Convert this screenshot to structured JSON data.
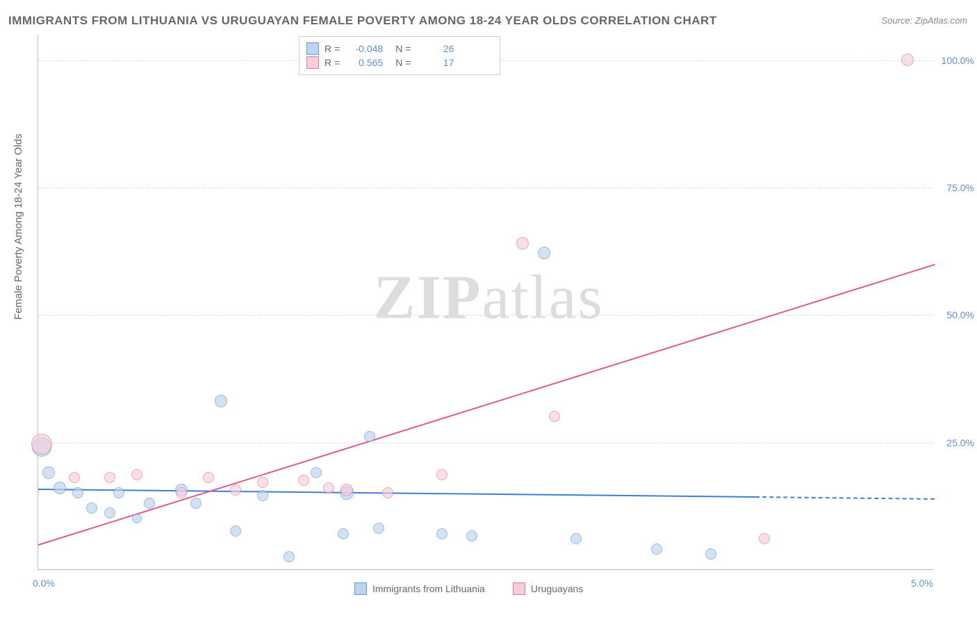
{
  "title": "IMMIGRANTS FROM LITHUANIA VS URUGUAYAN FEMALE POVERTY AMONG 18-24 YEAR OLDS CORRELATION CHART",
  "source": "Source: ZipAtlas.com",
  "watermark_zip": "ZIP",
  "watermark_atlas": "atlas",
  "yaxis_title": "Female Poverty Among 18-24 Year Olds",
  "chart": {
    "type": "scatter",
    "xlim": [
      0.0,
      5.0
    ],
    "ylim": [
      0.0,
      105.0
    ],
    "background_color": "#ffffff",
    "grid_color": "#dddddd",
    "grid_dash": true,
    "axis_color": "#bbbbbb",
    "tick_color": "#5b8fd6",
    "tick_fontsize": 14,
    "y_gridlines": [
      25.0,
      50.0,
      75.0,
      100.0
    ],
    "y_tick_labels": [
      "25.0%",
      "50.0%",
      "75.0%",
      "100.0%"
    ],
    "x_ticks": [
      0.0,
      5.0
    ],
    "x_tick_labels": [
      "0.0%",
      "5.0%"
    ],
    "series": [
      {
        "name": "Immigrants from Lithuania",
        "fill_color": "#bcd4ee",
        "stroke_color": "#6598d8",
        "fill_opacity": 0.65,
        "marker_radius": 8,
        "R": "-0.048",
        "N": "26",
        "trend": {
          "x1": 0.0,
          "y1": 16.0,
          "x2": 4.0,
          "y2": 14.5,
          "extend_x2": 5.0,
          "extend_y2": 14.1,
          "color": "#3b7dd8",
          "width": 2
        },
        "points": [
          {
            "x": 0.02,
            "y": 24.0,
            "r": 14
          },
          {
            "x": 0.06,
            "y": 19.0,
            "r": 9
          },
          {
            "x": 0.12,
            "y": 16.0,
            "r": 9
          },
          {
            "x": 0.22,
            "y": 15.0,
            "r": 8
          },
          {
            "x": 0.3,
            "y": 12.0,
            "r": 8
          },
          {
            "x": 0.4,
            "y": 11.0,
            "r": 8
          },
          {
            "x": 0.45,
            "y": 15.0,
            "r": 8
          },
          {
            "x": 0.62,
            "y": 13.0,
            "r": 8
          },
          {
            "x": 0.8,
            "y": 15.5,
            "r": 9
          },
          {
            "x": 0.88,
            "y": 13.0,
            "r": 8
          },
          {
            "x": 1.02,
            "y": 33.0,
            "r": 9
          },
          {
            "x": 1.1,
            "y": 7.5,
            "r": 8
          },
          {
            "x": 1.25,
            "y": 14.5,
            "r": 8
          },
          {
            "x": 1.4,
            "y": 2.5,
            "r": 8
          },
          {
            "x": 1.55,
            "y": 19.0,
            "r": 8
          },
          {
            "x": 1.72,
            "y": 15.0,
            "r": 10
          },
          {
            "x": 1.7,
            "y": 7.0,
            "r": 8
          },
          {
            "x": 1.85,
            "y": 26.0,
            "r": 8
          },
          {
            "x": 1.9,
            "y": 8.0,
            "r": 8
          },
          {
            "x": 2.25,
            "y": 7.0,
            "r": 8
          },
          {
            "x": 2.42,
            "y": 6.5,
            "r": 8
          },
          {
            "x": 2.82,
            "y": 62.0,
            "r": 9
          },
          {
            "x": 3.0,
            "y": 6.0,
            "r": 8
          },
          {
            "x": 3.45,
            "y": 4.0,
            "r": 8
          },
          {
            "x": 3.75,
            "y": 3.0,
            "r": 8
          },
          {
            "x": 0.55,
            "y": 10.0,
            "r": 7
          }
        ]
      },
      {
        "name": "Uruguayans",
        "fill_color": "#f6cfdb",
        "stroke_color": "#e27a9a",
        "fill_opacity": 0.65,
        "marker_radius": 8,
        "R": "0.565",
        "N": "17",
        "trend": {
          "x1": 0.0,
          "y1": 5.0,
          "x2": 5.0,
          "y2": 60.0,
          "color": "#e05a85",
          "width": 2
        },
        "points": [
          {
            "x": 0.02,
            "y": 24.5,
            "r": 15
          },
          {
            "x": 0.2,
            "y": 18.0,
            "r": 8
          },
          {
            "x": 0.4,
            "y": 18.0,
            "r": 8
          },
          {
            "x": 0.55,
            "y": 18.5,
            "r": 8
          },
          {
            "x": 0.8,
            "y": 15.0,
            "r": 8
          },
          {
            "x": 0.95,
            "y": 18.0,
            "r": 8
          },
          {
            "x": 1.1,
            "y": 15.5,
            "r": 8
          },
          {
            "x": 1.25,
            "y": 17.0,
            "r": 8
          },
          {
            "x": 1.48,
            "y": 17.5,
            "r": 8
          },
          {
            "x": 1.62,
            "y": 16.0,
            "r": 8
          },
          {
            "x": 1.72,
            "y": 15.5,
            "r": 9
          },
          {
            "x": 1.95,
            "y": 15.0,
            "r": 8
          },
          {
            "x": 2.25,
            "y": 18.5,
            "r": 8
          },
          {
            "x": 2.7,
            "y": 64.0,
            "r": 9
          },
          {
            "x": 2.88,
            "y": 30.0,
            "r": 8
          },
          {
            "x": 4.05,
            "y": 6.0,
            "r": 8
          },
          {
            "x": 4.85,
            "y": 100.0,
            "r": 9
          }
        ]
      }
    ]
  },
  "legend_top_labels": {
    "R": "R =",
    "N": "N ="
  },
  "legend_bottom": {
    "series1": "Immigrants from Lithuania",
    "series2": "Uruguayans"
  }
}
